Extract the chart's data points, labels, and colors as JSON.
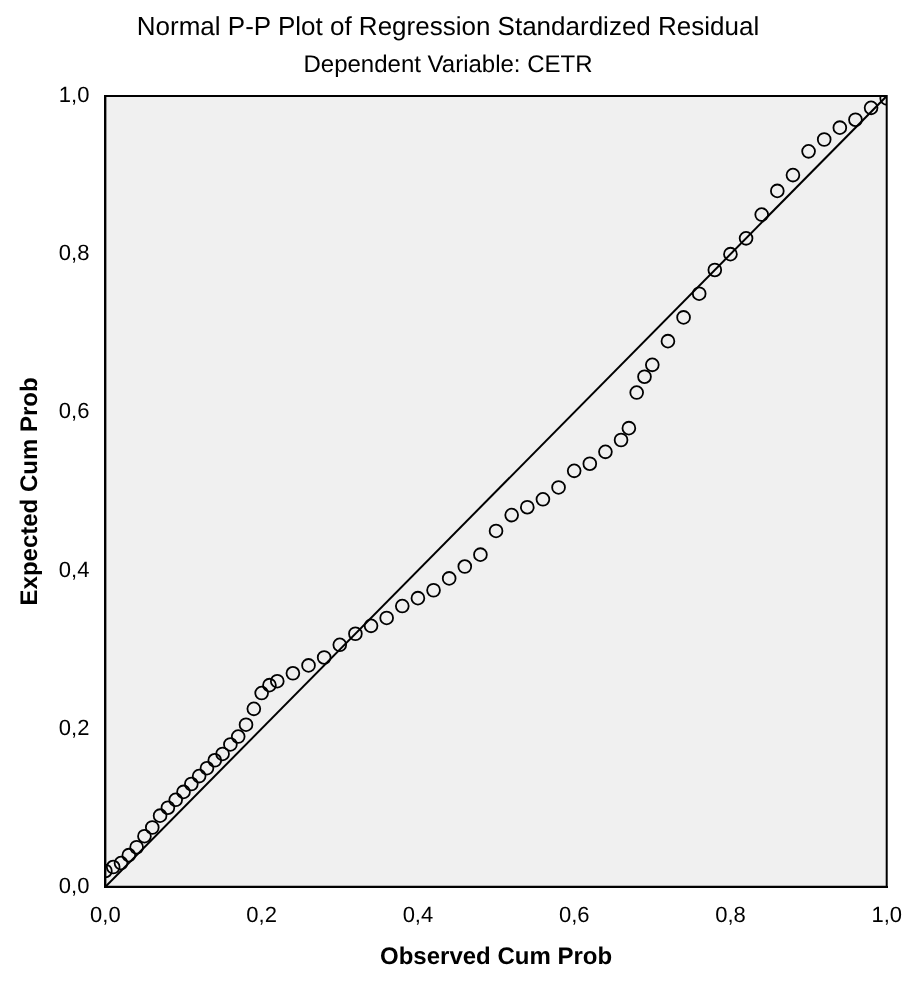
{
  "chart_data": {
    "type": "scatter",
    "title": "Normal P-P Plot of Regression Standardized Residual",
    "subtitle": "Dependent Variable: CETR",
    "xlabel": "Observed Cum Prob",
    "ylabel": "Expected Cum Prob",
    "grid": false,
    "legend": false,
    "xlim": [
      0,
      1
    ],
    "ylim": [
      0,
      1
    ],
    "xticks": [
      {
        "value": 0,
        "label": "0,0"
      },
      {
        "value": 0.2,
        "label": "0,2"
      },
      {
        "value": 0.4,
        "label": "0,4"
      },
      {
        "value": 0.6,
        "label": "0,6"
      },
      {
        "value": 0.8,
        "label": "0,8"
      },
      {
        "value": 1,
        "label": "1,0"
      }
    ],
    "yticks": [
      {
        "value": 0,
        "label": "0,0"
      },
      {
        "value": 0.2,
        "label": "0,2"
      },
      {
        "value": 0.4,
        "label": "0,4"
      },
      {
        "value": 0.6,
        "label": "0,6"
      },
      {
        "value": 0.8,
        "label": "0,8"
      },
      {
        "value": 1,
        "label": "1,0"
      }
    ],
    "series": [
      {
        "marker": "circle",
        "color": "#000000",
        "x": [
          0.0,
          0.01,
          0.02,
          0.03,
          0.04,
          0.05,
          0.06,
          0.07,
          0.08,
          0.09,
          0.1,
          0.11,
          0.12,
          0.13,
          0.14,
          0.15,
          0.16,
          0.17,
          0.18,
          0.19,
          0.2,
          0.21,
          0.22,
          0.24,
          0.26,
          0.28,
          0.3,
          0.32,
          0.34,
          0.36,
          0.38,
          0.4,
          0.42,
          0.44,
          0.46,
          0.48,
          0.5,
          0.52,
          0.54,
          0.56,
          0.58,
          0.6,
          0.62,
          0.64,
          0.66,
          0.67,
          0.68,
          0.69,
          0.7,
          0.72,
          0.74,
          0.76,
          0.78,
          0.8,
          0.82,
          0.84,
          0.86,
          0.88,
          0.9,
          0.92,
          0.94,
          0.96,
          0.98,
          1.0
        ],
        "values": [
          0.02,
          0.025,
          0.03,
          0.04,
          0.05,
          0.064,
          0.075,
          0.09,
          0.1,
          0.11,
          0.12,
          0.13,
          0.14,
          0.15,
          0.16,
          0.168,
          0.18,
          0.19,
          0.205,
          0.225,
          0.245,
          0.255,
          0.26,
          0.27,
          0.28,
          0.29,
          0.306,
          0.32,
          0.33,
          0.34,
          0.355,
          0.365,
          0.375,
          0.39,
          0.405,
          0.42,
          0.45,
          0.47,
          0.48,
          0.49,
          0.505,
          0.526,
          0.535,
          0.55,
          0.565,
          0.58,
          0.625,
          0.645,
          0.66,
          0.69,
          0.72,
          0.75,
          0.78,
          0.8,
          0.82,
          0.85,
          0.88,
          0.9,
          0.93,
          0.945,
          0.96,
          0.97,
          0.985,
          0.997
        ]
      },
      {
        "type": "line",
        "color": "#000000",
        "x": [
          0,
          1
        ],
        "values": [
          0,
          1
        ]
      }
    ]
  }
}
